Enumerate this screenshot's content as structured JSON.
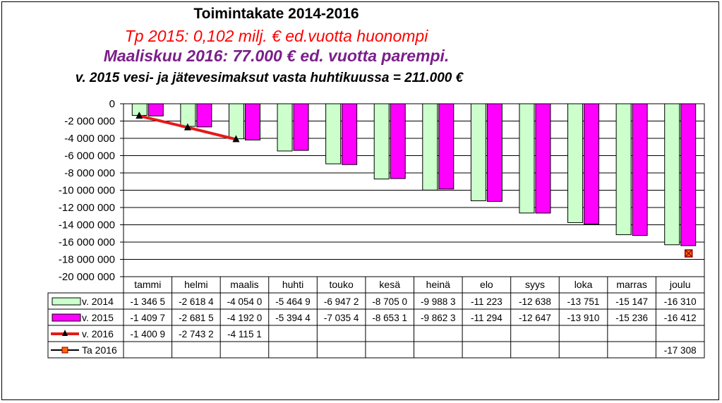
{
  "title": "Toimintakate 2014-2016",
  "subtitle1": "Tp 2015: 0,102 milj. € ed.vuotta huonompi",
  "subtitle2": "Maaliskuu 2016: 77.000 € ed. vuotta parempi.",
  "subtitle3": "v. 2015 vesi- ja jätevesimaksut vasta huhtikuussa = 211.000 €",
  "colors": {
    "s2014": "#ccffcc",
    "s2015": "#ff00ff",
    "s2016": "#e41a1a",
    "ta2016": "#cc3300"
  },
  "chart_data": {
    "type": "bar",
    "title": "Toimintakate 2014-2016",
    "categories": [
      "tammi",
      "helmi",
      "maalis",
      "huhti",
      "touko",
      "kesä",
      "heinä",
      "elo",
      "syys",
      "loka",
      "marras",
      "joulu"
    ],
    "ylim": [
      -20000000,
      0
    ],
    "yticks": [
      0,
      -2000000,
      -4000000,
      -6000000,
      -8000000,
      -10000000,
      -12000000,
      -14000000,
      -16000000,
      -18000000,
      -20000000
    ],
    "ytick_labels": [
      "0",
      "-2 000 000",
      "-4 000 000",
      "-6 000 000",
      "-8 000 000",
      "-10 000 000",
      "-12 000 000",
      "-14 000 000",
      "-16 000 000",
      "-18 000 000",
      "-20 000 000"
    ],
    "grid": true,
    "series": [
      {
        "name": "v. 2014",
        "type": "bar",
        "values": [
          -1346500,
          -2618400,
          -4054000,
          -5464900,
          -6947200,
          -8705000,
          -9988300,
          -11223000,
          -12638000,
          -13751000,
          -15147000,
          -16310000
        ],
        "labels": [
          "-1 346 5",
          "-2 618 4",
          "-4 054 0",
          "-5 464 9",
          "-6 947 2",
          "-8 705 0",
          "-9 988 3",
          "-11 223",
          "-12 638",
          "-13 751",
          "-15 147",
          "-16 310"
        ]
      },
      {
        "name": "v. 2015",
        "type": "bar",
        "values": [
          -1409700,
          -2681500,
          -4192000,
          -5394400,
          -7035400,
          -8653100,
          -9862300,
          -11294000,
          -12647000,
          -13910000,
          -15236000,
          -16412000
        ],
        "labels": [
          "-1 409 7",
          "-2 681 5",
          "-4 192 0",
          "-5 394 4",
          "-7 035 4",
          "-8 653 1",
          "-9 862 3",
          "-11 294",
          "-12 647",
          "-13 910",
          "-15 236",
          "-16 412"
        ]
      },
      {
        "name": "v. 2016",
        "type": "line",
        "values": [
          -1400900,
          -2743200,
          -4115100,
          null,
          null,
          null,
          null,
          null,
          null,
          null,
          null,
          null
        ],
        "labels": [
          "-1 400 9",
          "-2 743 2",
          "-4 115 1",
          "",
          "",
          "",
          "",
          "",
          "",
          "",
          "",
          ""
        ]
      },
      {
        "name": "Ta 2016",
        "type": "marker",
        "values": [
          null,
          null,
          null,
          null,
          null,
          null,
          null,
          null,
          null,
          null,
          null,
          -17308000
        ],
        "labels": [
          "",
          "",
          "",
          "",
          "",
          "",
          "",
          "",
          "",
          "",
          "",
          "-17 308"
        ]
      }
    ]
  }
}
